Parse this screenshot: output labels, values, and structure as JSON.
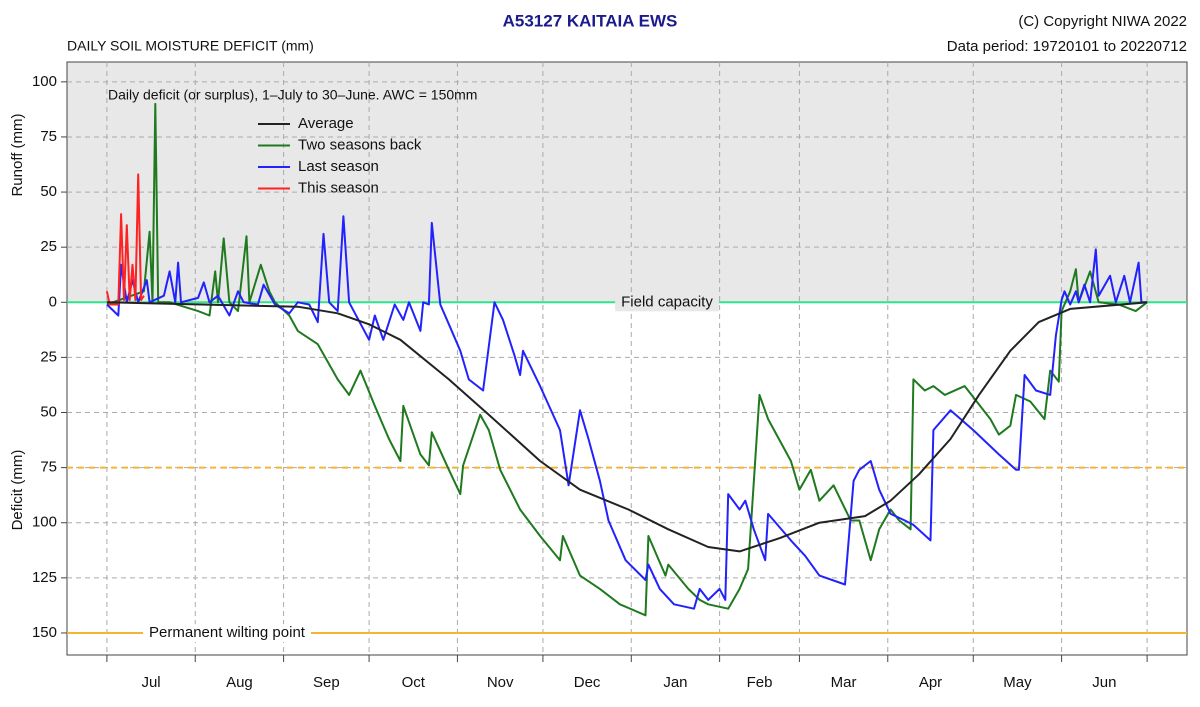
{
  "chart_data": {
    "type": "line",
    "title": "A53127  KAITAIA EWS",
    "subtitle": "DAILY SOIL MOISTURE DEFICIT (mm)",
    "copyright": "(C) Copyright NIWA  2022",
    "data_period": "Data period:  19720101  to  20220712",
    "annotation": "Daily deficit (or surplus), 1–July to 30–June.  AWC = 150mm",
    "ylabel_top": "Runoff (mm)",
    "ylabel_bottom": "Deficit (mm)",
    "categories": [
      "Jul",
      "Aug",
      "Sep",
      "Oct",
      "Nov",
      "Dec",
      "Jan",
      "Feb",
      "Mar",
      "Apr",
      "May",
      "Jun"
    ],
    "xticks": [
      0,
      31,
      62,
      92,
      123,
      153,
      184,
      215,
      243,
      274,
      304,
      335,
      365
    ],
    "xlim": [
      -14,
      379
    ],
    "ylim": [
      -160,
      109
    ],
    "yticks": [
      100,
      75,
      50,
      25,
      0,
      {
        "value": -25,
        "label": "25"
      },
      {
        "value": -50,
        "label": "50"
      },
      {
        "value": -75,
        "label": "75"
      },
      {
        "value": -100,
        "label": "100"
      },
      {
        "value": -125,
        "label": "125"
      },
      {
        "value": -150,
        "label": "150"
      }
    ],
    "grid": true,
    "legend": "upper left",
    "reference_lines": [
      {
        "value": 0,
        "label": "Field capacity",
        "color": "#2ee68a"
      },
      {
        "value": -75,
        "color": "#f5b533",
        "style": "dashed"
      },
      {
        "value": -150,
        "label": "Permanent wilting point",
        "color": "#f5b533"
      }
    ],
    "series": [
      {
        "name": "Average",
        "color": "#222222",
        "x": [
          0,
          67,
          81,
          92,
          103,
          120,
          134,
          152,
          166,
          183,
          197,
          211,
          222,
          236,
          250,
          266,
          275,
          285,
          296,
          306,
          317,
          327,
          338,
          365
        ],
        "values": [
          0,
          -2,
          -5,
          -10,
          -17,
          -35,
          -51,
          -72,
          -85,
          -94,
          -103,
          -111,
          -113,
          -107,
          -100,
          -97,
          -90,
          -78,
          -62,
          -42,
          -22,
          -9,
          -3,
          0
        ]
      },
      {
        "name": "Two seasons back",
        "color": "#1f7a1f",
        "x": [
          0,
          13,
          15,
          16,
          17,
          18,
          22,
          32,
          36,
          38,
          39,
          41,
          43,
          46,
          49,
          50,
          54,
          57,
          59,
          64,
          67,
          74,
          81,
          85,
          89,
          94,
          99,
          103,
          104,
          110,
          113,
          114,
          120,
          124,
          125,
          131,
          134,
          138,
          145,
          152,
          159,
          160,
          166,
          173,
          180,
          189,
          190,
          196,
          197,
          204,
          208,
          211,
          218,
          222,
          225,
          229,
          232,
          240,
          243,
          247,
          250,
          255,
          261,
          264,
          268,
          271,
          275,
          278,
          282,
          283,
          287,
          290,
          294,
          301,
          310,
          313,
          317,
          319,
          324,
          329,
          331,
          334,
          335,
          338,
          340,
          341,
          345,
          348,
          355,
          361,
          365
        ],
        "values": [
          -1,
          5,
          32,
          0,
          90,
          0,
          0,
          -4,
          -6,
          14,
          0,
          29,
          0,
          -4,
          30,
          0,
          17,
          5,
          0,
          -6,
          -13,
          -19,
          -35,
          -42,
          -31,
          -47,
          -62,
          -72,
          -47,
          -69,
          -74,
          -59,
          -76,
          -87,
          -74,
          -51,
          -58,
          -76,
          -94,
          -106,
          -117,
          -106,
          -124,
          -130,
          -137,
          -142,
          -106,
          -124,
          -119,
          -130,
          -135,
          -137,
          -139,
          -130,
          -121,
          -42,
          -53,
          -72,
          -85,
          -76,
          -90,
          -83,
          -99,
          -99,
          -117,
          -103,
          -94,
          -99,
          -103,
          -35,
          -40,
          -38,
          -42,
          -38,
          -53,
          -60,
          -56,
          -42,
          -45,
          -53,
          -31,
          -36,
          -4,
          5,
          15,
          0,
          14,
          0,
          -1,
          -4,
          0
        ]
      },
      {
        "name": "Last season",
        "color": "#2222ff",
        "x": [
          0,
          4,
          5,
          7,
          9,
          11,
          14,
          15,
          20,
          22,
          24,
          25,
          26,
          32,
          34,
          36,
          39,
          43,
          46,
          48,
          53,
          55,
          59,
          64,
          67,
          71,
          74,
          76,
          78,
          81,
          83,
          85,
          92,
          94,
          97,
          101,
          104,
          106,
          110,
          111,
          113,
          114,
          117,
          120,
          124,
          127,
          132,
          136,
          139,
          143,
          145,
          146,
          152,
          159,
          162,
          166,
          169,
          173,
          176,
          182,
          189,
          190,
          194,
          199,
          206,
          208,
          211,
          215,
          217,
          218,
          222,
          224,
          227,
          231,
          232,
          240,
          245,
          250,
          259,
          262,
          264,
          268,
          271,
          275,
          280,
          283,
          289,
          290,
          296,
          304,
          313,
          319,
          320,
          322,
          326,
          331,
          333,
          335,
          336,
          338,
          340,
          341,
          343,
          345,
          347,
          348,
          352,
          354,
          357,
          359,
          362,
          363,
          365
        ],
        "values": [
          -1,
          -6,
          17,
          0,
          10,
          0,
          10,
          0,
          3,
          14,
          0,
          18,
          0,
          2,
          9,
          0,
          3,
          -6,
          5,
          0,
          -1,
          8,
          -1,
          -5,
          0,
          -1,
          -9,
          31,
          0,
          -4,
          39,
          0,
          -17,
          -6,
          -17,
          -1,
          -8,
          0,
          -13,
          0,
          -1,
          36,
          -1,
          -10,
          -22,
          -35,
          -40,
          0,
          -8,
          -24,
          -33,
          -22,
          -38,
          -58,
          -83,
          -49,
          -62,
          -81,
          -99,
          -117,
          -126,
          -119,
          -130,
          -137,
          -139,
          -130,
          -135,
          -130,
          -135,
          -87,
          -94,
          -90,
          -103,
          -117,
          -96,
          -108,
          -115,
          -124,
          -128,
          -81,
          -76,
          -72,
          -85,
          -96,
          -99,
          -101,
          -108,
          -58,
          -49,
          -58,
          -69,
          -76,
          -76,
          -33,
          -40,
          -42,
          -15,
          1,
          5,
          -1,
          5,
          0,
          8,
          0,
          24,
          3,
          12,
          0,
          12,
          0,
          18,
          0,
          0
        ]
      },
      {
        "name": "This season",
        "color": "#ff2222",
        "x": [
          0,
          1,
          4,
          5,
          6,
          7,
          8,
          9,
          10,
          11,
          12,
          13
        ],
        "values": [
          5,
          -1,
          -1,
          40,
          1,
          35,
          1,
          17,
          1,
          58,
          1,
          3
        ]
      }
    ]
  }
}
